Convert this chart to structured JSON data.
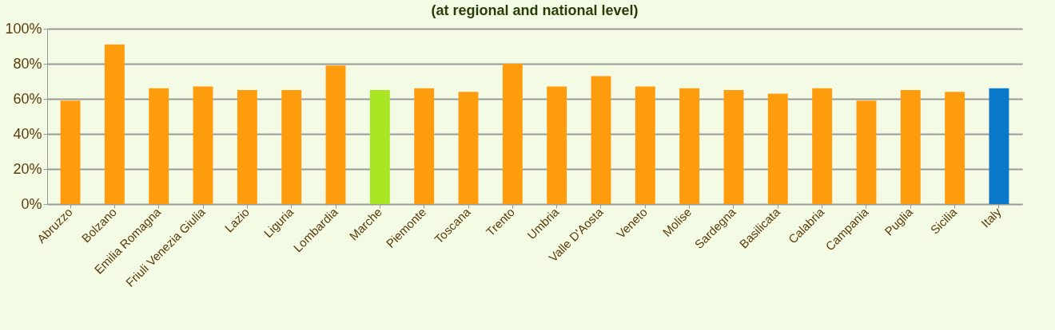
{
  "chart_data": {
    "type": "bar",
    "title": "(at regional and national level)",
    "categories": [
      "Abruzzo",
      "Bolzano",
      "Emilia Romagna",
      "Friuli Venezia Giulia",
      "Lazio",
      "Liguria",
      "Lombardia",
      "Marche",
      "Piemonte",
      "Toscana",
      "Trento",
      "Umbria",
      "Valle D'Aosta",
      "Veneto",
      "Molise",
      "Sardegna",
      "Basilicata",
      "Calabria",
      "Campania",
      "Puglia",
      "Sicilia",
      "Italy"
    ],
    "values": [
      59,
      91,
      66,
      67,
      65,
      65,
      79,
      65,
      66,
      64,
      80,
      67,
      73,
      67,
      66,
      65,
      63,
      66,
      59,
      65,
      64,
      66
    ],
    "colors": [
      "#ff9c0e",
      "#ff9c0e",
      "#ff9c0e",
      "#ff9c0e",
      "#ff9c0e",
      "#ff9c0e",
      "#ff9c0e",
      "#a8e624",
      "#ff9c0e",
      "#ff9c0e",
      "#ff9c0e",
      "#ff9c0e",
      "#ff9c0e",
      "#ff9c0e",
      "#ff9c0e",
      "#ff9c0e",
      "#ff9c0e",
      "#ff9c0e",
      "#ff9c0e",
      "#ff9c0e",
      "#ff9c0e",
      "#0a78c8"
    ],
    "ylim": [
      0,
      100
    ],
    "yticks": [
      {
        "value": 0,
        "label": "0%"
      },
      {
        "value": 20,
        "label": "20%"
      },
      {
        "value": 40,
        "label": "40%"
      },
      {
        "value": 60,
        "label": "60%"
      },
      {
        "value": 80,
        "label": "80%"
      },
      {
        "value": 100,
        "label": "100%"
      }
    ],
    "grid": "y"
  }
}
